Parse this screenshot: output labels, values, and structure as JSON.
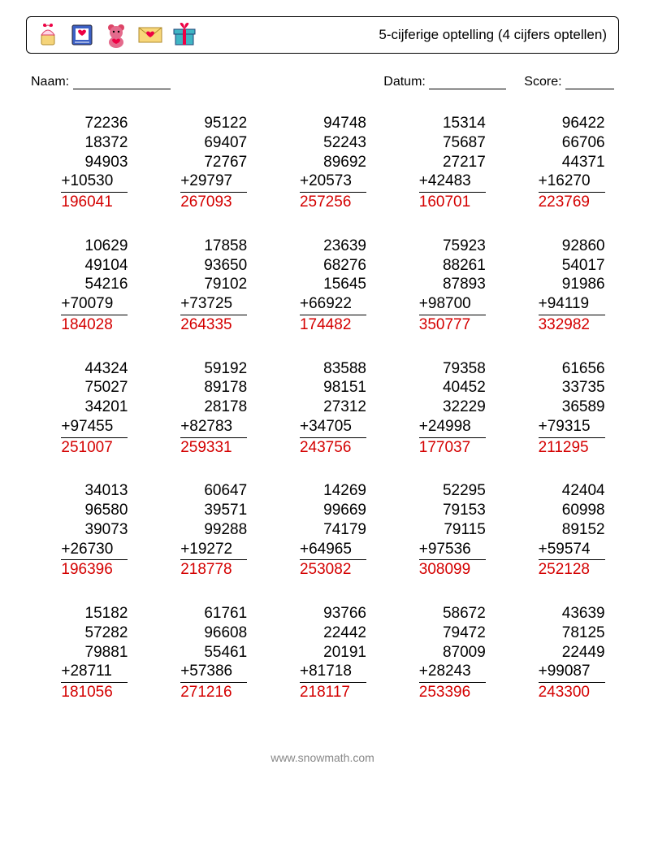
{
  "title": "5-cijferige optelling (4 cijfers optellen)",
  "meta": {
    "name_label": "Naam:",
    "date_label": "Datum:",
    "score_label": "Score:"
  },
  "footer": "www.snowmath.com",
  "colors": {
    "answer": "#d40000",
    "text": "#000000",
    "background": "#ffffff"
  },
  "problems": [
    {
      "nums": [
        "72236",
        "18372",
        "94903",
        "10530"
      ],
      "ans": "196041"
    },
    {
      "nums": [
        "95122",
        "69407",
        "72767",
        "29797"
      ],
      "ans": "267093"
    },
    {
      "nums": [
        "94748",
        "52243",
        "89692",
        "20573"
      ],
      "ans": "257256"
    },
    {
      "nums": [
        "15314",
        "75687",
        "27217",
        "42483"
      ],
      "ans": "160701"
    },
    {
      "nums": [
        "96422",
        "66706",
        "44371",
        "16270"
      ],
      "ans": "223769"
    },
    {
      "nums": [
        "10629",
        "49104",
        "54216",
        "70079"
      ],
      "ans": "184028"
    },
    {
      "nums": [
        "17858",
        "93650",
        "79102",
        "73725"
      ],
      "ans": "264335"
    },
    {
      "nums": [
        "23639",
        "68276",
        "15645",
        "66922"
      ],
      "ans": "174482"
    },
    {
      "nums": [
        "75923",
        "88261",
        "87893",
        "98700"
      ],
      "ans": "350777"
    },
    {
      "nums": [
        "92860",
        "54017",
        "91986",
        "94119"
      ],
      "ans": "332982"
    },
    {
      "nums": [
        "44324",
        "75027",
        "34201",
        "97455"
      ],
      "ans": "251007"
    },
    {
      "nums": [
        "59192",
        "89178",
        "28178",
        "82783"
      ],
      "ans": "259331"
    },
    {
      "nums": [
        "83588",
        "98151",
        "27312",
        "34705"
      ],
      "ans": "243756"
    },
    {
      "nums": [
        "79358",
        "40452",
        "32229",
        "24998"
      ],
      "ans": "177037"
    },
    {
      "nums": [
        "61656",
        "33735",
        "36589",
        "79315"
      ],
      "ans": "211295"
    },
    {
      "nums": [
        "34013",
        "96580",
        "39073",
        "26730"
      ],
      "ans": "196396"
    },
    {
      "nums": [
        "60647",
        "39571",
        "99288",
        "19272"
      ],
      "ans": "218778"
    },
    {
      "nums": [
        "14269",
        "99669",
        "74179",
        "64965"
      ],
      "ans": "253082"
    },
    {
      "nums": [
        "52295",
        "79153",
        "79115",
        "97536"
      ],
      "ans": "308099"
    },
    {
      "nums": [
        "42404",
        "60998",
        "89152",
        "59574"
      ],
      "ans": "252128"
    },
    {
      "nums": [
        "15182",
        "57282",
        "79881",
        "28711"
      ],
      "ans": "181056"
    },
    {
      "nums": [
        "61761",
        "96608",
        "55461",
        "57386"
      ],
      "ans": "271216"
    },
    {
      "nums": [
        "93766",
        "22442",
        "20191",
        "81718"
      ],
      "ans": "218117"
    },
    {
      "nums": [
        "58672",
        "79472",
        "87009",
        "28243"
      ],
      "ans": "253396"
    },
    {
      "nums": [
        "43639",
        "78125",
        "22449",
        "99087"
      ],
      "ans": "243300"
    }
  ]
}
